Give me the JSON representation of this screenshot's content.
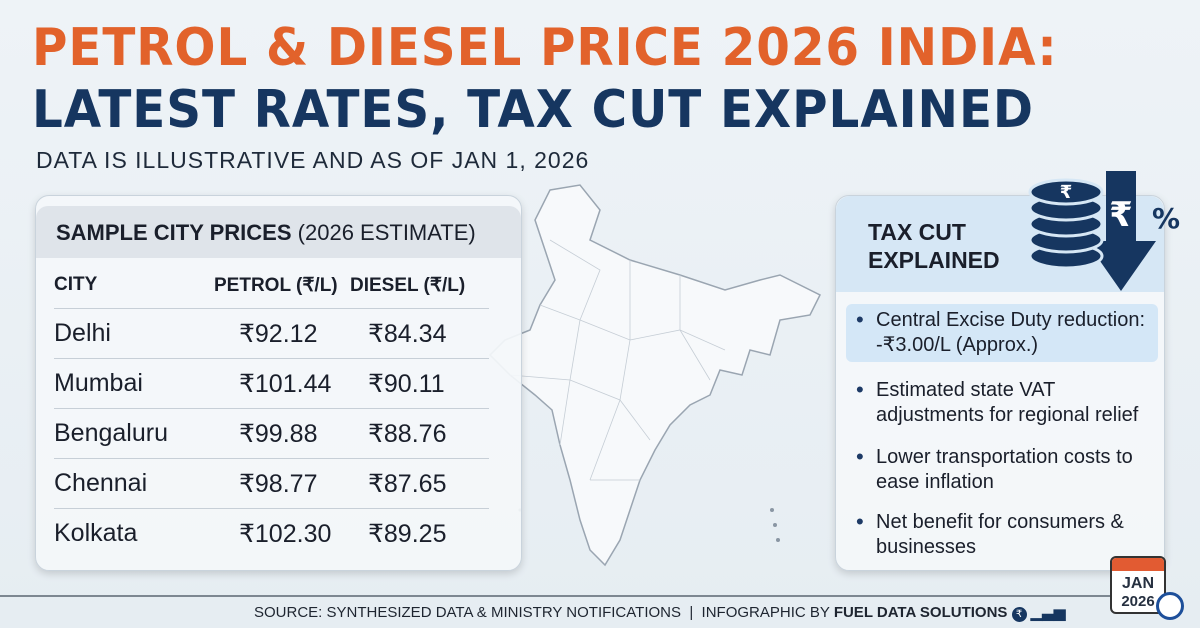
{
  "title": {
    "line1": "PETROL & DIESEL PRICE 2026 INDIA:",
    "line2": "LATEST RATES, TAX CUT EXPLAINED",
    "subtitle": "DATA IS ILLUSTRATIVE AND AS OF JAN 1, 2026"
  },
  "prices": {
    "heading": "SAMPLE CITY PRICES",
    "heading_note": "(2026 ESTIMATE)",
    "columns": [
      "CITY",
      "PETROL (₹/L)",
      "DIESEL (₹/L)"
    ],
    "rows": [
      {
        "city": "Delhi",
        "petrol": "₹92.12",
        "diesel": "₹84.34"
      },
      {
        "city": "Mumbai",
        "petrol": "₹101.44",
        "diesel": "₹90.11"
      },
      {
        "city": "Bengaluru",
        "petrol": "₹99.88",
        "diesel": "₹88.76"
      },
      {
        "city": "Chennai",
        "petrol": "₹98.77",
        "diesel": "₹87.65"
      },
      {
        "city": "Kolkata",
        "petrol": "₹102.30",
        "diesel": "₹89.25"
      }
    ]
  },
  "tax": {
    "line1": "TAX CUT",
    "line2": "EXPLAINED",
    "icon_symbols": [
      "₹",
      "%"
    ],
    "bullets": [
      "Central Excise Duty reduction: -₹3.00/L (Approx.)",
      "Estimated state VAT adjustments for regional relief",
      "Lower transportation costs to ease inflation",
      "Net benefit for consumers & businesses"
    ]
  },
  "footer": {
    "source": "SOURCE: SYNTHESIZED DATA & MINISTRY NOTIFICATIONS  |  INFOGRAPHIC BY ",
    "brand": "FUEL DATA SOLUTIONS"
  },
  "calendar": {
    "month": "JAN",
    "year": "2026"
  },
  "colors": {
    "orange": "#e2622b",
    "navy": "#163660"
  }
}
